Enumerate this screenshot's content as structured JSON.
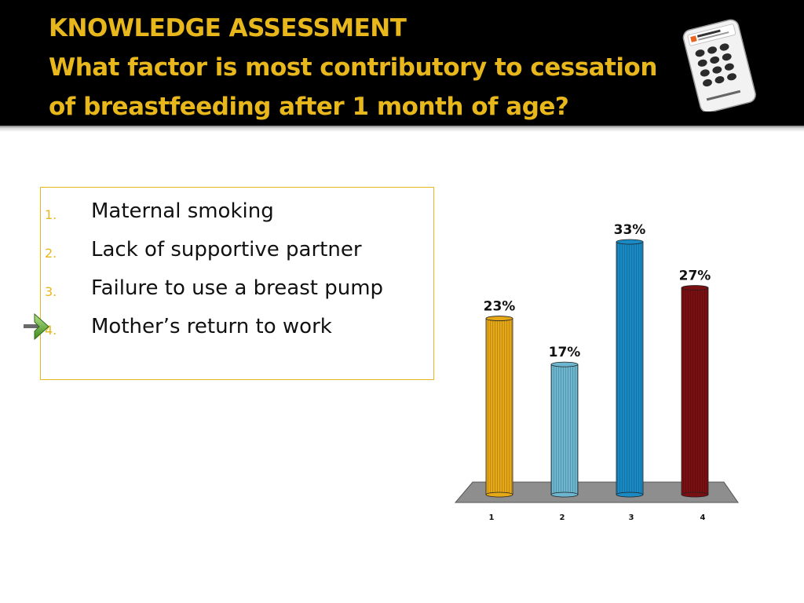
{
  "header": {
    "title_line1": "KNOWLEDGE ASSESSMENT",
    "title_line2": "What factor is most contributory to cessation",
    "title_line3": "of breastfeeding after 1 month of age?"
  },
  "answers": [
    {
      "num": "1.",
      "text": "Maternal smoking"
    },
    {
      "num": "2.",
      "text": "Lack of supportive partner"
    },
    {
      "num": "3.",
      "text": "Failure to use a breast pump"
    },
    {
      "num": "4.",
      "text": "Mother’s return to work"
    }
  ],
  "correct_answer_index": 4,
  "colors": {
    "accent": "#e8b71b",
    "header_bg": "#000000"
  },
  "chart_data": {
    "type": "bar",
    "categories": [
      "1",
      "2",
      "3",
      "4"
    ],
    "values": [
      23,
      17,
      33,
      27
    ],
    "labels": [
      "23%",
      "17%",
      "33%",
      "27%"
    ],
    "ylim": [
      0,
      33
    ],
    "colors": [
      "#e6a817",
      "#6db6cf",
      "#1a8ac4",
      "#7a0f12"
    ],
    "grid": false,
    "legend": "none"
  }
}
